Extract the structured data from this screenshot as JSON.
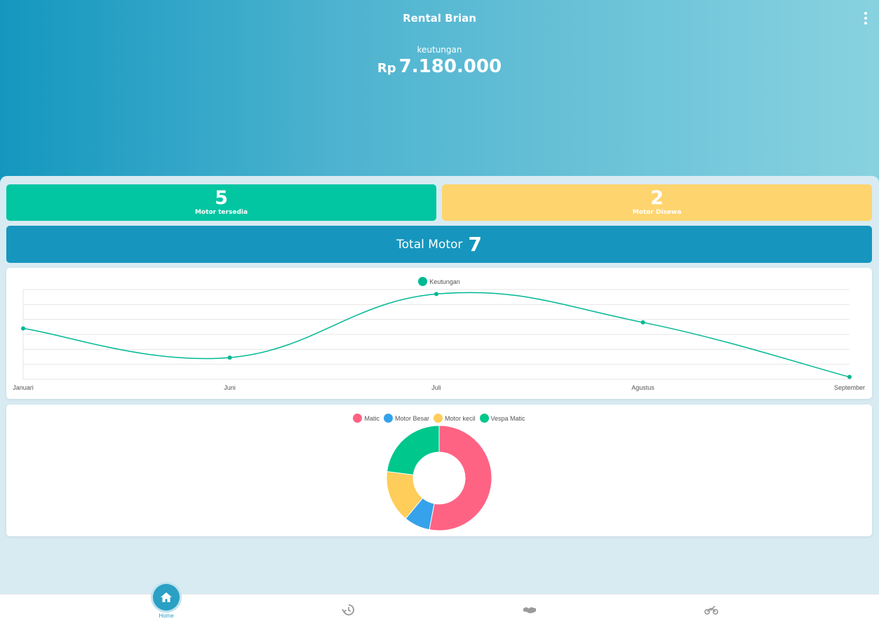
{
  "header": {
    "title": "Rental Brian",
    "profit_label": "keutungan",
    "currency": "Rp",
    "profit_value": "7.180.000"
  },
  "stats": {
    "available_count": "5",
    "available_label": "Motor tersedia",
    "rented_count": "2",
    "rented_label": "Motor Disewa"
  },
  "total": {
    "label": "Total Motor",
    "value": "7"
  },
  "colors": {
    "teal": "#02c5a2",
    "yellow": "#fed46e",
    "blue": "#1696be",
    "pink": "#ff6384",
    "lightblue": "#36a2eb",
    "green": "#00c78c"
  },
  "chart_data": [
    {
      "type": "line",
      "legend": [
        "Keutungan"
      ],
      "categories": [
        "Januari",
        "Juni",
        "Juli",
        "Agustus",
        "September"
      ],
      "series": [
        {
          "name": "Keutungan",
          "values": [
            3.4,
            1.45,
            5.7,
            3.8,
            0.15
          ],
          "color": "#00b894"
        }
      ],
      "ylim": [
        0,
        6
      ],
      "grid": true,
      "legend_position": "top"
    },
    {
      "type": "pie",
      "variant": "doughnut",
      "legend": [
        "Matic",
        "Motor Besar",
        "Motor kecil",
        "Vespa Matic"
      ],
      "values": [
        53,
        8,
        16,
        23
      ],
      "colors": [
        "#ff6384",
        "#36a2eb",
        "#fecd5a",
        "#00c78c"
      ],
      "legend_position": "top"
    }
  ],
  "nav": {
    "home_label": "Home",
    "items": [
      "home-icon",
      "history-icon",
      "handshake-icon",
      "motorcycle-icon"
    ]
  }
}
